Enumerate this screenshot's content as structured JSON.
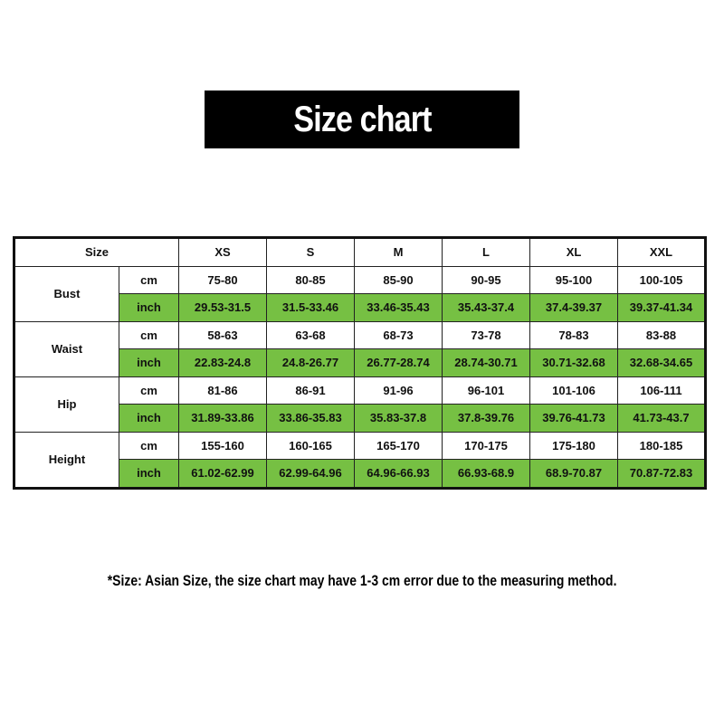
{
  "title": "Size chart",
  "table": {
    "corner": "Size",
    "sizes": [
      "XS",
      "S",
      "M",
      "L",
      "XL",
      "XXL"
    ],
    "units": {
      "cm": "cm",
      "inch": "inch"
    },
    "rows": [
      {
        "label": "Bust",
        "cm": [
          "75-80",
          "80-85",
          "85-90",
          "90-95",
          "95-100",
          "100-105"
        ],
        "inch": [
          "29.53-31.5",
          "31.5-33.46",
          "33.46-35.43",
          "35.43-37.4",
          "37.4-39.37",
          "39.37-41.34"
        ]
      },
      {
        "label": "Waist",
        "cm": [
          "58-63",
          "63-68",
          "68-73",
          "73-78",
          "78-83",
          "83-88"
        ],
        "inch": [
          "22.83-24.8",
          "24.8-26.77",
          "26.77-28.74",
          "28.74-30.71",
          "30.71-32.68",
          "32.68-34.65"
        ]
      },
      {
        "label": "Hip",
        "cm": [
          "81-86",
          "86-91",
          "91-96",
          "96-101",
          "101-106",
          "106-111"
        ],
        "inch": [
          "31.89-33.86",
          "33.86-35.83",
          "35.83-37.8",
          "37.8-39.76",
          "39.76-41.73",
          "41.73-43.7"
        ]
      },
      {
        "label": "Height",
        "cm": [
          "155-160",
          "160-165",
          "165-170",
          "170-175",
          "175-180",
          "180-185"
        ],
        "inch": [
          "61.02-62.99",
          "62.99-64.96",
          "64.96-66.93",
          "66.93-68.9",
          "68.9-70.87",
          "70.87-72.83"
        ]
      }
    ]
  },
  "note": "*Size: Asian Size, the size chart may have 1-3 cm error due to the measuring method.",
  "colors": {
    "inch_row": "#76c043"
  }
}
